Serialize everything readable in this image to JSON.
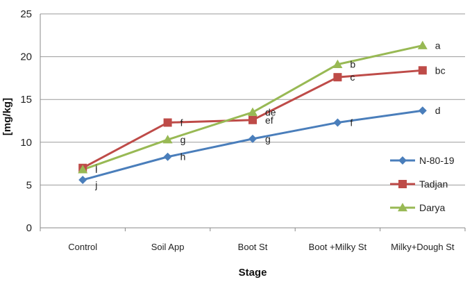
{
  "chart_data": {
    "type": "line",
    "title": "",
    "xlabel": "Stage",
    "ylabel": "[mg/kg]",
    "categories": [
      "Control",
      "Soil App",
      "Boot St",
      "Boot +Milky St",
      "Milky+Dough St"
    ],
    "ylim": [
      0,
      25
    ],
    "yticks": [
      "0",
      "5",
      "10",
      "15",
      "20",
      "25"
    ],
    "grid": true,
    "legend_position": "right",
    "series": [
      {
        "name": "N-80-19",
        "color": "#4a7ebb",
        "marker": "diamond",
        "values": [
          5.6,
          8.3,
          10.4,
          12.3,
          13.7
        ],
        "labels": [
          "j",
          "h",
          "g",
          "f",
          "d"
        ]
      },
      {
        "name": "Tadjan",
        "color": "#be4b48",
        "marker": "square",
        "values": [
          7.0,
          12.3,
          12.6,
          17.6,
          18.4
        ],
        "labels": [
          "i",
          "f",
          "ef",
          "c",
          "bc"
        ]
      },
      {
        "name": "Darya",
        "color": "#98b954",
        "marker": "triangle",
        "values": [
          6.8,
          10.3,
          13.5,
          19.1,
          21.3
        ],
        "labels": [
          "i",
          "g",
          "de",
          "b",
          "a"
        ]
      }
    ]
  }
}
